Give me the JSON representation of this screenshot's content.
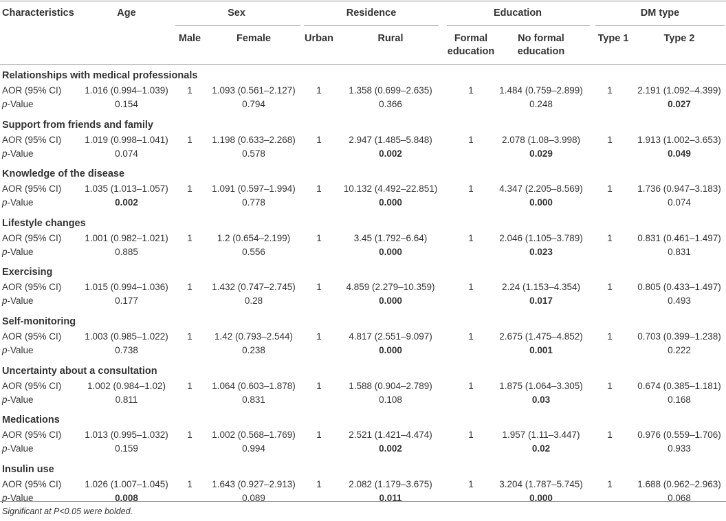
{
  "table": {
    "header": {
      "characteristics": "Characteristics",
      "age": "Age",
      "sex": "Sex",
      "male": "Male",
      "female": "Female",
      "residence": "Residence",
      "urban": "Urban",
      "rural": "Rural",
      "education": "Education",
      "formal_education_1": "Formal",
      "formal_education_2": "education",
      "no_formal_education_1": "No formal",
      "no_formal_education_2": "education",
      "dm_type": "DM type",
      "type1": "Type 1",
      "type2": "Type 2"
    },
    "row_labels": {
      "aor": "AOR (95% CI)",
      "p_italic": "p",
      "p_rest": "-Value"
    },
    "sections": [
      {
        "title": "Relationships with medical professionals",
        "aor": [
          "1.016 (0.994–1.039)",
          "1",
          "1.093 (0.561–2.127)",
          "1",
          "1.358 (0.699–2.635)",
          "1",
          "1.484 (0.759–2.899)",
          "1",
          "2.191 (1.092–4.399)"
        ],
        "p": [
          "0.154",
          "0.794",
          "0.366",
          "0.248",
          "0.027"
        ],
        "p_bold": [
          false,
          false,
          false,
          false,
          true
        ]
      },
      {
        "title": "Support from friends and family",
        "aor": [
          "1.019 (0.998–1.041)",
          "1",
          "1.198 (0.633–2.268)",
          "1",
          "2.947 (1.485–5.848)",
          "1",
          "2.078 (1.08–3.998)",
          "1",
          "1.913 (1.002–3.653)"
        ],
        "p": [
          "0.074",
          "0.578",
          "0.002",
          "0.029",
          "0.049"
        ],
        "p_bold": [
          false,
          false,
          true,
          true,
          true
        ]
      },
      {
        "title": "Knowledge of the disease",
        "aor": [
          "1.035 (1.013–1.057)",
          "1",
          "1.091 (0.597–1.994)",
          "1",
          "10.132 (4.492–22.851)",
          "1",
          "4.347 (2.205–8.569)",
          "1",
          "1.736 (0.947–3.183)"
        ],
        "p": [
          "0.002",
          "0.778",
          "0.000",
          "0.000",
          "0.074"
        ],
        "p_bold": [
          true,
          false,
          true,
          true,
          false
        ]
      },
      {
        "title": "Lifestyle changes",
        "aor": [
          "1.001 (0.982–1.021)",
          "1",
          "1.2 (0.654–2.199)",
          "1",
          "3.45 (1.792–6.64)",
          "1",
          "2.046 (1.105–3.789)",
          "1",
          "0.831 (0.461–1.497)"
        ],
        "p": [
          "0.885",
          "0.556",
          "0.000",
          "0.023",
          "0.831"
        ],
        "p_bold": [
          false,
          false,
          true,
          true,
          false
        ]
      },
      {
        "title": "Exercising",
        "aor": [
          "1.015 (0.994–1.036)",
          "1",
          "1.432 (0.747–2.745)",
          "1",
          "4.859 (2.279–10.359)",
          "1",
          "2.24 (1.153–4.354)",
          "1",
          "0.805 (0.433–1.497)"
        ],
        "p": [
          "0.177",
          "0.28",
          "0.000",
          "0.017",
          "0.493"
        ],
        "p_bold": [
          false,
          false,
          true,
          true,
          false
        ]
      },
      {
        "title": "Self-monitoring",
        "aor": [
          "1.003 (0.985–1.022)",
          "1",
          "1.42 (0.793–2.544)",
          "1",
          "4.817 (2.551–9.097)",
          "1",
          "2.675 (1.475–4.852)",
          "1",
          "0.703 (0.399–1.238)"
        ],
        "p": [
          "0.738",
          "0.238",
          "0.000",
          "0.001",
          "0.222"
        ],
        "p_bold": [
          false,
          false,
          true,
          true,
          false
        ]
      },
      {
        "title": "Uncertainty about a consultation",
        "aor": [
          "1.002 (0.984–1.02)",
          "1",
          "1.064 (0.603–1.878)",
          "1",
          "1.588 (0.904–2.789)",
          "1",
          "1.875 (1.064–3.305)",
          "1",
          "0.674 (0.385–1.181)"
        ],
        "p": [
          "0.811",
          "0.831",
          "0.108",
          "0.03",
          "0.168"
        ],
        "p_bold": [
          false,
          false,
          false,
          true,
          false
        ]
      },
      {
        "title": "Medications",
        "aor": [
          "1.013 (0.995–1.032)",
          "1",
          "1.002 (0.568–1.769)",
          "1",
          "2.521 (1.421–4.474)",
          "1",
          "1.957 (1.11–3.447)",
          "1",
          "0.976 (0.559–1.706)"
        ],
        "p": [
          "0.159",
          "0.994",
          "0.002",
          "0.02",
          "0.933"
        ],
        "p_bold": [
          false,
          false,
          true,
          true,
          false
        ]
      },
      {
        "title": "Insulin use",
        "aor": [
          "1.026 (1.007–1.045)",
          "1",
          "1.643 (0.927–2.913)",
          "1",
          "2.082 (1.179–3.675)",
          "1",
          "3.204 (1.787–5.745)",
          "1",
          "1.688 (0.962–2.963)"
        ],
        "p": [
          "0.008",
          "0.089",
          "0.011",
          "0.000",
          "0.068"
        ],
        "p_bold": [
          true,
          false,
          true,
          true,
          false
        ]
      }
    ],
    "footnote": "Significant at P<0.05 were bolded."
  }
}
